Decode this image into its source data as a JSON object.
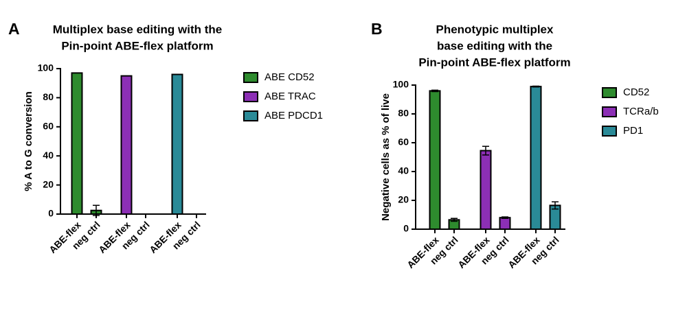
{
  "chart_data": [
    {
      "type": "bar",
      "panel": "A",
      "title": [
        "Multiplex base editing with the",
        "Pin-point ABE-flex platform"
      ],
      "y_label": "% A to G conversion",
      "categories": [
        "ABE-flex",
        "neg ctrl",
        "ABE-flex",
        "neg ctrl",
        "ABE-flex",
        "neg ctrl"
      ],
      "series": [
        {
          "name": "ABE CD52",
          "color": "#2e8b2e",
          "values": [
            97,
            2.5,
            null,
            null,
            null,
            null
          ],
          "errors": [
            null,
            3.5,
            null,
            null,
            null,
            null
          ]
        },
        {
          "name": "ABE TRAC",
          "color": "#8c2fb5",
          "values": [
            null,
            null,
            95,
            0,
            null,
            null
          ],
          "errors": [
            null,
            null,
            null,
            null,
            null,
            null
          ]
        },
        {
          "name": "ABE PDCD1",
          "color": "#2a8a97",
          "values": [
            null,
            null,
            null,
            null,
            96,
            0
          ],
          "errors": [
            null,
            null,
            null,
            null,
            null,
            null
          ]
        }
      ],
      "ylim": [
        0,
        100
      ],
      "yticks": [
        0,
        20,
        40,
        60,
        80,
        100
      ]
    },
    {
      "type": "bar",
      "panel": "B",
      "title": [
        "Phenotypic multiplex",
        "base editing with the",
        "Pin-point ABE-flex platform"
      ],
      "y_label": "Negative cells as % of live",
      "categories": [
        "ABE-flex",
        "neg ctrl",
        "ABE-flex",
        "neg ctrl",
        "ABE-flex",
        "neg ctrl"
      ],
      "series": [
        {
          "name": "CD52",
          "color": "#2e8b2e",
          "values": [
            96,
            6.5,
            null,
            null,
            null,
            null
          ],
          "errors": [
            0.5,
            1,
            null,
            null,
            null,
            null
          ]
        },
        {
          "name": "TCRa/b",
          "color": "#8c2fb5",
          "values": [
            null,
            null,
            54.5,
            8,
            null,
            null
          ],
          "errors": [
            null,
            null,
            3,
            0.5,
            null,
            null
          ]
        },
        {
          "name": "PD1",
          "color": "#2a8a97",
          "values": [
            null,
            null,
            null,
            null,
            99,
            16.5
          ],
          "errors": [
            null,
            null,
            null,
            null,
            0.3,
            2.5
          ]
        }
      ],
      "ylim": [
        0,
        100
      ],
      "yticks": [
        0,
        20,
        40,
        60,
        80,
        100
      ]
    }
  ]
}
